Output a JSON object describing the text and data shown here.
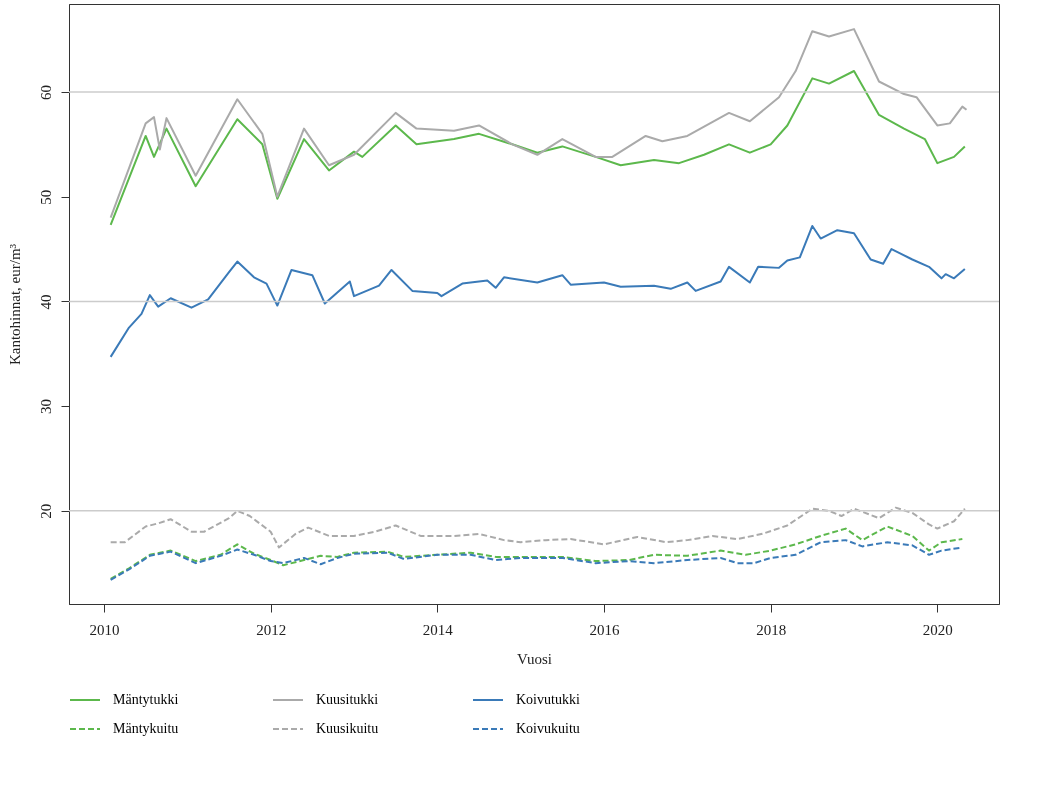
{
  "chart_data": {
    "type": "line",
    "xlabel": "Vuosi",
    "ylabel": "Kantohinnat, eur/m³",
    "xlim": [
      2009.58,
      2020.74
    ],
    "ylim": [
      11.1,
      68.4
    ],
    "xticks": [
      2010,
      2012,
      2014,
      2016,
      2018,
      2020
    ],
    "yticks": [
      20,
      30,
      40,
      50,
      60
    ],
    "grid": false,
    "legend": "bottom",
    "marker": "none",
    "ref_lines": [
      {
        "axis": "y",
        "value": 20,
        "label": null,
        "color": "#cccccc"
      },
      {
        "axis": "y",
        "value": 40,
        "label": null,
        "color": "#cccccc"
      },
      {
        "axis": "y",
        "value": 60,
        "label": null,
        "color": "#cccccc"
      }
    ],
    "series": [
      {
        "name": "Mäntytukki",
        "color": "#5cb84c",
        "line_style": "solid",
        "x": [
          2010.08,
          2010.5,
          2010.6,
          2010.75,
          2011.1,
          2011.6,
          2011.9,
          2012.08,
          2012.4,
          2012.7,
          2013,
          2013.1,
          2013.5,
          2013.75,
          2014.2,
          2014.5,
          2014.9,
          2015.2,
          2015.5,
          2015.9,
          2016.2,
          2016.6,
          2016.9,
          2017.2,
          2017.5,
          2017.75,
          2018,
          2018.2,
          2018.5,
          2018.7,
          2019,
          2019.3,
          2019.6,
          2019.85,
          2020,
          2020.2,
          2020.33
        ],
        "values": [
          47.3,
          55.8,
          53.8,
          56.5,
          51,
          57.4,
          55,
          49.8,
          55.5,
          52.5,
          54.3,
          53.8,
          56.8,
          55,
          55.5,
          56,
          55,
          54.2,
          54.8,
          53.8,
          53,
          53.5,
          53.2,
          54,
          55,
          54.2,
          55,
          56.8,
          61.3,
          60.8,
          62,
          57.8,
          56.5,
          55.5,
          53.2,
          53.8,
          54.8
        ]
      },
      {
        "name": "Kuusitukki",
        "color": "#aaaaaa",
        "line_style": "solid",
        "x": [
          2010.08,
          2010.5,
          2010.6,
          2010.67,
          2010.75,
          2011.1,
          2011.6,
          2011.9,
          2012.08,
          2012.4,
          2012.7,
          2013,
          2013.5,
          2013.75,
          2014.2,
          2014.5,
          2014.9,
          2015.2,
          2015.5,
          2015.9,
          2016.1,
          2016.5,
          2016.7,
          2017,
          2017.5,
          2017.75,
          2018.1,
          2018.3,
          2018.5,
          2018.7,
          2019,
          2019.3,
          2019.6,
          2019.75,
          2020,
          2020.15,
          2020.3,
          2020.35
        ],
        "values": [
          48,
          57,
          57.6,
          54.5,
          57.5,
          52,
          59.3,
          56,
          50,
          56.5,
          53,
          54,
          58,
          56.5,
          56.3,
          56.8,
          55,
          54,
          55.5,
          53.8,
          53.8,
          55.8,
          55.3,
          55.8,
          58,
          57.2,
          59.5,
          62,
          65.8,
          65.3,
          66,
          61,
          59.8,
          59.5,
          56.8,
          57,
          58.6,
          58.3
        ]
      },
      {
        "name": "Koivutukki",
        "color": "#3a7ab8",
        "line_style": "solid",
        "x": [
          2010.08,
          2010.3,
          2010.45,
          2010.55,
          2010.65,
          2010.8,
          2011.05,
          2011.25,
          2011.5,
          2011.6,
          2011.8,
          2011.95,
          2012.08,
          2012.25,
          2012.5,
          2012.65,
          2012.95,
          2013,
          2013.3,
          2013.45,
          2013.7,
          2014,
          2014.05,
          2014.3,
          2014.6,
          2014.7,
          2014.8,
          2015.2,
          2015.5,
          2015.6,
          2016,
          2016.2,
          2016.6,
          2016.8,
          2017,
          2017.1,
          2017.4,
          2017.5,
          2017.75,
          2017.85,
          2018.1,
          2018.2,
          2018.35,
          2018.5,
          2018.6,
          2018.8,
          2019,
          2019.2,
          2019.35,
          2019.45,
          2019.7,
          2019.9,
          2020.05,
          2020.1,
          2020.2,
          2020.33
        ],
        "values": [
          34.7,
          37.5,
          38.8,
          40.6,
          39.5,
          40.3,
          39.4,
          40.2,
          42.8,
          43.8,
          42.3,
          41.7,
          39.6,
          43,
          42.5,
          39.8,
          41.9,
          40.5,
          41.5,
          43,
          41,
          40.8,
          40.5,
          41.7,
          42,
          41.3,
          42.3,
          41.8,
          42.5,
          41.6,
          41.8,
          41.4,
          41.5,
          41.2,
          41.8,
          41,
          41.9,
          43.3,
          41.8,
          43.3,
          43.2,
          43.9,
          44.2,
          47.2,
          46,
          46.8,
          46.5,
          44,
          43.6,
          45,
          44,
          43.3,
          42.2,
          42.6,
          42.2,
          43.1
        ]
      },
      {
        "name": "Mäntykuitu",
        "color": "#5cb84c",
        "line_style": "dashed",
        "x": [
          2010.08,
          2010.3,
          2010.55,
          2010.8,
          2011.1,
          2011.4,
          2011.6,
          2011.8,
          2012,
          2012.15,
          2012.4,
          2012.6,
          2012.8,
          2013,
          2013.4,
          2013.6,
          2014,
          2014.4,
          2014.7,
          2015,
          2015.5,
          2015.9,
          2016.3,
          2016.6,
          2017,
          2017.4,
          2017.7,
          2018,
          2018.3,
          2018.6,
          2018.9,
          2019.1,
          2019.4,
          2019.7,
          2019.9,
          2020.05,
          2020.3
        ],
        "values": [
          13.5,
          14.5,
          15.8,
          16.2,
          15.2,
          15.8,
          16.8,
          15.9,
          15.3,
          14.8,
          15.3,
          15.7,
          15.6,
          16,
          16.1,
          15.6,
          15.8,
          16,
          15.6,
          15.6,
          15.6,
          15.2,
          15.3,
          15.8,
          15.7,
          16.2,
          15.8,
          16.2,
          16.8,
          17.6,
          18.3,
          17.2,
          18.5,
          17.6,
          16.2,
          17,
          17.3
        ]
      },
      {
        "name": "Kuusikuitu",
        "color": "#aaaaaa",
        "line_style": "dashed",
        "x": [
          2010.08,
          2010.25,
          2010.5,
          2010.65,
          2010.8,
          2011.05,
          2011.2,
          2011.5,
          2011.6,
          2011.75,
          2012,
          2012.1,
          2012.3,
          2012.45,
          2012.7,
          2013,
          2013.25,
          2013.5,
          2013.8,
          2014.2,
          2014.5,
          2014.8,
          2015,
          2015.3,
          2015.6,
          2016,
          2016.4,
          2016.75,
          2017,
          2017.3,
          2017.6,
          2017.9,
          2018.2,
          2018.5,
          2018.7,
          2018.85,
          2019,
          2019.3,
          2019.5,
          2019.7,
          2019.9,
          2020,
          2020.2,
          2020.33
        ],
        "values": [
          17,
          17,
          18.5,
          18.8,
          19.2,
          18,
          18,
          19.3,
          20,
          19.5,
          18,
          16.5,
          17.8,
          18.4,
          17.6,
          17.6,
          18,
          18.6,
          17.6,
          17.6,
          17.8,
          17.2,
          17,
          17.2,
          17.3,
          16.8,
          17.5,
          17,
          17.2,
          17.6,
          17.3,
          17.8,
          18.6,
          20.2,
          20,
          19.5,
          20.2,
          19.3,
          20.3,
          19.8,
          18.7,
          18.3,
          19,
          20.2
        ]
      },
      {
        "name": "Koivukuitu",
        "color": "#3a7ab8",
        "line_style": "dashed",
        "x": [
          2010.08,
          2010.3,
          2010.55,
          2010.8,
          2011.1,
          2011.4,
          2011.6,
          2011.8,
          2012,
          2012.15,
          2012.4,
          2012.6,
          2012.8,
          2013,
          2013.4,
          2013.6,
          2014,
          2014.4,
          2014.7,
          2015,
          2015.5,
          2015.9,
          2016.3,
          2016.6,
          2017,
          2017.4,
          2017.6,
          2017.8,
          2018,
          2018.3,
          2018.6,
          2018.9,
          2019.1,
          2019.4,
          2019.7,
          2019.9,
          2020.05,
          2020.3
        ],
        "values": [
          13.4,
          14.4,
          15.7,
          16.1,
          15,
          15.7,
          16.3,
          15.8,
          15.2,
          15,
          15.5,
          14.9,
          15.5,
          15.9,
          16,
          15.4,
          15.8,
          15.8,
          15.3,
          15.5,
          15.5,
          15,
          15.2,
          15,
          15.3,
          15.5,
          15,
          15,
          15.5,
          15.8,
          17,
          17.2,
          16.6,
          17,
          16.7,
          15.8,
          16.2,
          16.5
        ]
      }
    ]
  }
}
